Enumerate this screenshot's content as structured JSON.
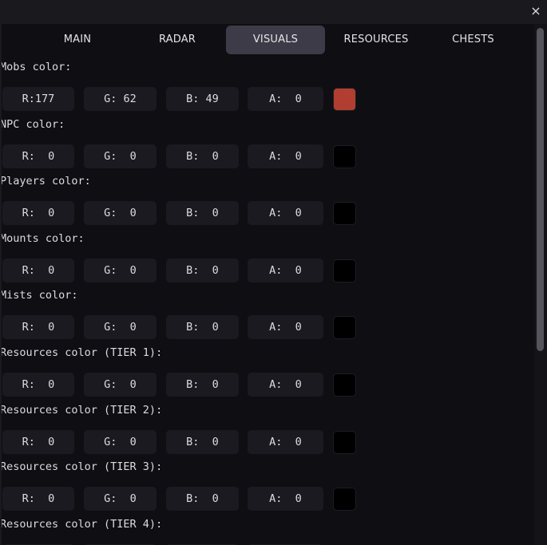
{
  "window": {
    "close_label": "×"
  },
  "tabs": [
    {
      "label": "MAIN",
      "active": false
    },
    {
      "label": "RADAR",
      "active": false
    },
    {
      "label": "VISUALS",
      "active": true
    },
    {
      "label": "RESOURCES",
      "active": false
    },
    {
      "label": "CHESTS",
      "active": false
    }
  ],
  "color_rows": [
    {
      "label": "Mobs color:",
      "r": 177,
      "g": 62,
      "b": 49,
      "a": 0,
      "swatch": "#b13e31"
    },
    {
      "label": "NPC color:",
      "r": 0,
      "g": 0,
      "b": 0,
      "a": 0,
      "swatch": "#000000"
    },
    {
      "label": "Players color:",
      "r": 0,
      "g": 0,
      "b": 0,
      "a": 0,
      "swatch": "#000000"
    },
    {
      "label": "Mounts color:",
      "r": 0,
      "g": 0,
      "b": 0,
      "a": 0,
      "swatch": "#000000"
    },
    {
      "label": "Mists color:",
      "r": 0,
      "g": 0,
      "b": 0,
      "a": 0,
      "swatch": "#000000"
    },
    {
      "label": "Resources color (TIER 1):",
      "r": 0,
      "g": 0,
      "b": 0,
      "a": 0,
      "swatch": "#000000"
    },
    {
      "label": "Resources color (TIER 2):",
      "r": 0,
      "g": 0,
      "b": 0,
      "a": 0,
      "swatch": "#000000"
    },
    {
      "label": "Resources color (TIER 3):",
      "r": 0,
      "g": 0,
      "b": 0,
      "a": 0,
      "swatch": "#000000"
    },
    {
      "label": "Resources color (TIER 4):",
      "r": 0,
      "g": 0,
      "b": 0,
      "a": 0,
      "swatch": "#000000"
    }
  ],
  "channel_labels": {
    "r": "R",
    "g": "G",
    "b": "B",
    "a": "A"
  }
}
